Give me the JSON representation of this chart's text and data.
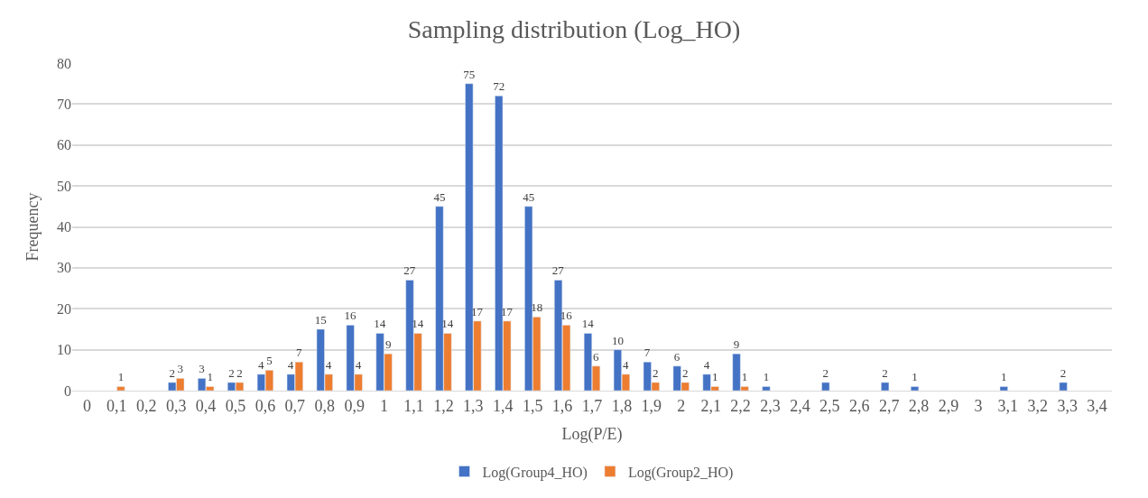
{
  "chart_data": {
    "type": "bar",
    "title": "Sampling distribution (Log_HO)",
    "xlabel": "Log(P/E)",
    "ylabel": "Frequency",
    "categories": [
      "0",
      "0,1",
      "0,2",
      "0,3",
      "0,4",
      "0,5",
      "0,6",
      "0,7",
      "0,8",
      "0,9",
      "1",
      "1,1",
      "1,2",
      "1,3",
      "1,4",
      "1,5",
      "1,6",
      "1,7",
      "1,8",
      "1,9",
      "2",
      "2,1",
      "2,2",
      "2,3",
      "2,4",
      "2,5",
      "2,6",
      "2,7",
      "2,8",
      "2,9",
      "3",
      "3,1",
      "3,2",
      "3,3",
      "3,4"
    ],
    "series": [
      {
        "name": "Log(Group4_HO)",
        "color": "#4472c4",
        "values": [
          null,
          null,
          null,
          2,
          3,
          2,
          4,
          4,
          15,
          16,
          14,
          27,
          45,
          75,
          72,
          45,
          27,
          14,
          10,
          7,
          6,
          4,
          9,
          1,
          null,
          2,
          null,
          2,
          1,
          null,
          null,
          1,
          null,
          2,
          null
        ],
        "value_labels": [
          null,
          null,
          null,
          "2",
          "3",
          "2",
          "4",
          "4",
          "15",
          "16",
          "14",
          "27",
          "45",
          "75",
          "72",
          "45",
          "27",
          "14",
          "10",
          "7",
          "6",
          "4",
          "9",
          "1",
          null,
          "2",
          null,
          "2",
          "1",
          null,
          null,
          "1",
          null,
          "2",
          null
        ]
      },
      {
        "name": "Log(Group2_HO)",
        "color": "#ed7d31",
        "values": [
          null,
          1,
          null,
          3,
          1,
          2,
          5,
          7,
          4,
          4,
          9,
          14,
          14,
          17,
          17,
          18,
          16,
          6,
          4,
          2,
          2,
          1,
          1,
          null,
          null,
          null,
          null,
          null,
          null,
          null,
          null,
          null,
          null,
          null,
          null
        ],
        "value_labels": [
          null,
          "1",
          null,
          "3",
          "1",
          "2",
          "5",
          "7",
          "4",
          "4",
          "9",
          "14",
          "14",
          "17",
          "17",
          "18",
          "16",
          "6",
          "4",
          "2",
          "2",
          "1",
          "1",
          null,
          null,
          null,
          null,
          null,
          null,
          null,
          null,
          null,
          null,
          null,
          null
        ]
      }
    ],
    "ylim": [
      0,
      80
    ],
    "yticks": [
      0,
      10,
      20,
      30,
      40,
      50,
      60,
      70,
      80
    ],
    "grid": "y",
    "legend": "bottom"
  }
}
